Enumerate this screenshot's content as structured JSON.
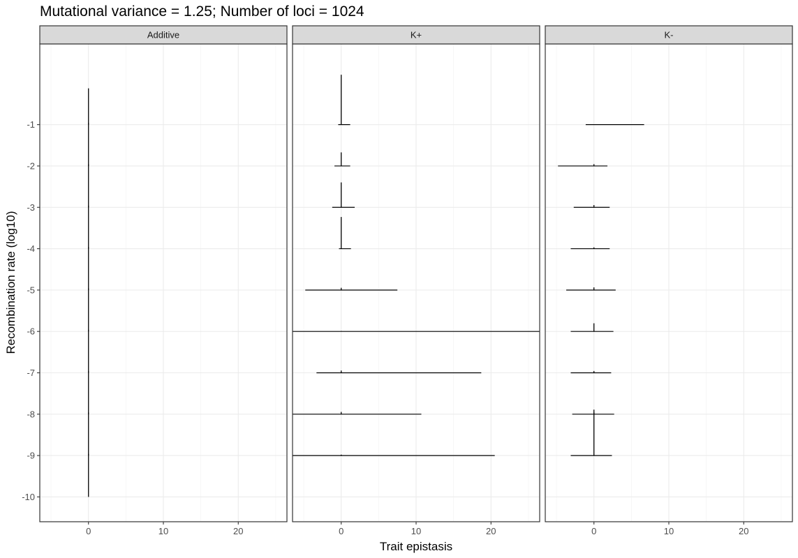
{
  "chart_data": {
    "type": "faceted-ridgeline",
    "title": "Mutational variance = 1.25; Number of loci = 1024",
    "xlabel": "Trait epistasis",
    "ylabel": "Recombination rate (log10)",
    "xlim": [
      -6.5,
      26.5
    ],
    "ylim": [
      -10.6,
      0.95
    ],
    "x_ticks": [
      0,
      10,
      20
    ],
    "x_tick_labels": [
      "0",
      "10",
      "20"
    ],
    "y_ticks": [
      -1,
      -2,
      -3,
      -4,
      -5,
      -6,
      -7,
      -8,
      -9,
      -10
    ],
    "y_tick_labels": [
      "-1",
      "-2",
      "-3",
      "-4",
      "-5",
      "-6",
      "-7",
      "-8",
      "-9",
      "-10"
    ],
    "grid": true,
    "legend": "none",
    "panels": [
      {
        "name": "Additive",
        "ridges": [
          {
            "y": -1,
            "xmin": 0,
            "xmax": 0,
            "peak_x": 0,
            "peak_height": 0.8
          },
          {
            "y": -2,
            "xmin": 0,
            "xmax": 0,
            "peak_x": 0,
            "peak_height": 0.95
          },
          {
            "y": -3,
            "xmin": 0,
            "xmax": 0,
            "peak_x": 0,
            "peak_height": 0.95
          },
          {
            "y": -4,
            "xmin": 0,
            "xmax": 0,
            "peak_x": 0,
            "peak_height": 0.95
          },
          {
            "y": -5,
            "xmin": 0,
            "xmax": 0,
            "peak_x": 0,
            "peak_height": 0.95
          },
          {
            "y": -6,
            "xmin": 0,
            "xmax": 0,
            "peak_x": 0,
            "peak_height": 0.95
          },
          {
            "y": -7,
            "xmin": 0,
            "xmax": 0,
            "peak_x": 0,
            "peak_height": 0.95
          },
          {
            "y": -8,
            "xmin": 0,
            "xmax": 0,
            "peak_x": 0,
            "peak_height": 0.95
          },
          {
            "y": -9,
            "xmin": 0,
            "xmax": 0,
            "peak_x": 0,
            "peak_height": 0.95
          },
          {
            "y": -10,
            "xmin": 0,
            "xmax": 0,
            "peak_x": 0,
            "peak_height": 0.95
          }
        ]
      },
      {
        "name": "K+",
        "ridges": [
          {
            "y": -1,
            "xmin": -0.4,
            "xmax": 1.2,
            "peak_x": 0,
            "peak_height": 1.1
          },
          {
            "y": -2,
            "xmin": -0.9,
            "xmax": 1.2,
            "peak_x": 0,
            "peak_height": 0.3
          },
          {
            "y": -3,
            "xmin": -1.2,
            "xmax": 1.8,
            "peak_x": 0,
            "peak_height": 0.55
          },
          {
            "y": -4,
            "xmin": -0.3,
            "xmax": 1.3,
            "peak_x": 0,
            "peak_height": 0.7
          },
          {
            "y": -5,
            "xmin": -4.8,
            "xmax": 7.5,
            "peak_x": 0,
            "peak_height": 0.05
          },
          {
            "y": -6,
            "xmin": -6.5,
            "xmax": 26.5,
            "peak_x": 0,
            "peak_height": 0.01
          },
          {
            "y": -7,
            "xmin": -3.3,
            "xmax": 18.7,
            "peak_x": 0,
            "peak_height": 0.05
          },
          {
            "y": -8,
            "xmin": -6.5,
            "xmax": 10.7,
            "peak_x": 0,
            "peak_height": 0.05
          },
          {
            "y": -9,
            "xmin": -6.5,
            "xmax": 20.5,
            "peak_x": 0,
            "peak_height": 0.02
          }
        ]
      },
      {
        "name": "K-",
        "ridges": [
          {
            "y": -1,
            "xmin": -1.1,
            "xmax": 6.7,
            "peak_x": 0,
            "peak_height": 0.0
          },
          {
            "y": -2,
            "xmin": -4.8,
            "xmax": 1.8,
            "peak_x": 0,
            "peak_height": 0.04
          },
          {
            "y": -3,
            "xmin": -2.7,
            "xmax": 2.1,
            "peak_x": 0,
            "peak_height": 0.05
          },
          {
            "y": -4,
            "xmin": -3.1,
            "xmax": 2.1,
            "peak_x": 0,
            "peak_height": 0.03
          },
          {
            "y": -5,
            "xmin": -3.7,
            "xmax": 2.9,
            "peak_x": 0,
            "peak_height": 0.06
          },
          {
            "y": -6,
            "xmin": -3.1,
            "xmax": 2.6,
            "peak_x": 0,
            "peak_height": 0.18
          },
          {
            "y": -7,
            "xmin": -3.1,
            "xmax": 2.3,
            "peak_x": 0,
            "peak_height": 0.04
          },
          {
            "y": -8,
            "xmin": -2.9,
            "xmax": 2.7,
            "peak_x": 0,
            "peak_height": 0.1
          },
          {
            "y": -9,
            "xmin": -3.1,
            "xmax": 2.4,
            "peak_x": 0,
            "peak_height": 0.95
          }
        ]
      }
    ]
  }
}
